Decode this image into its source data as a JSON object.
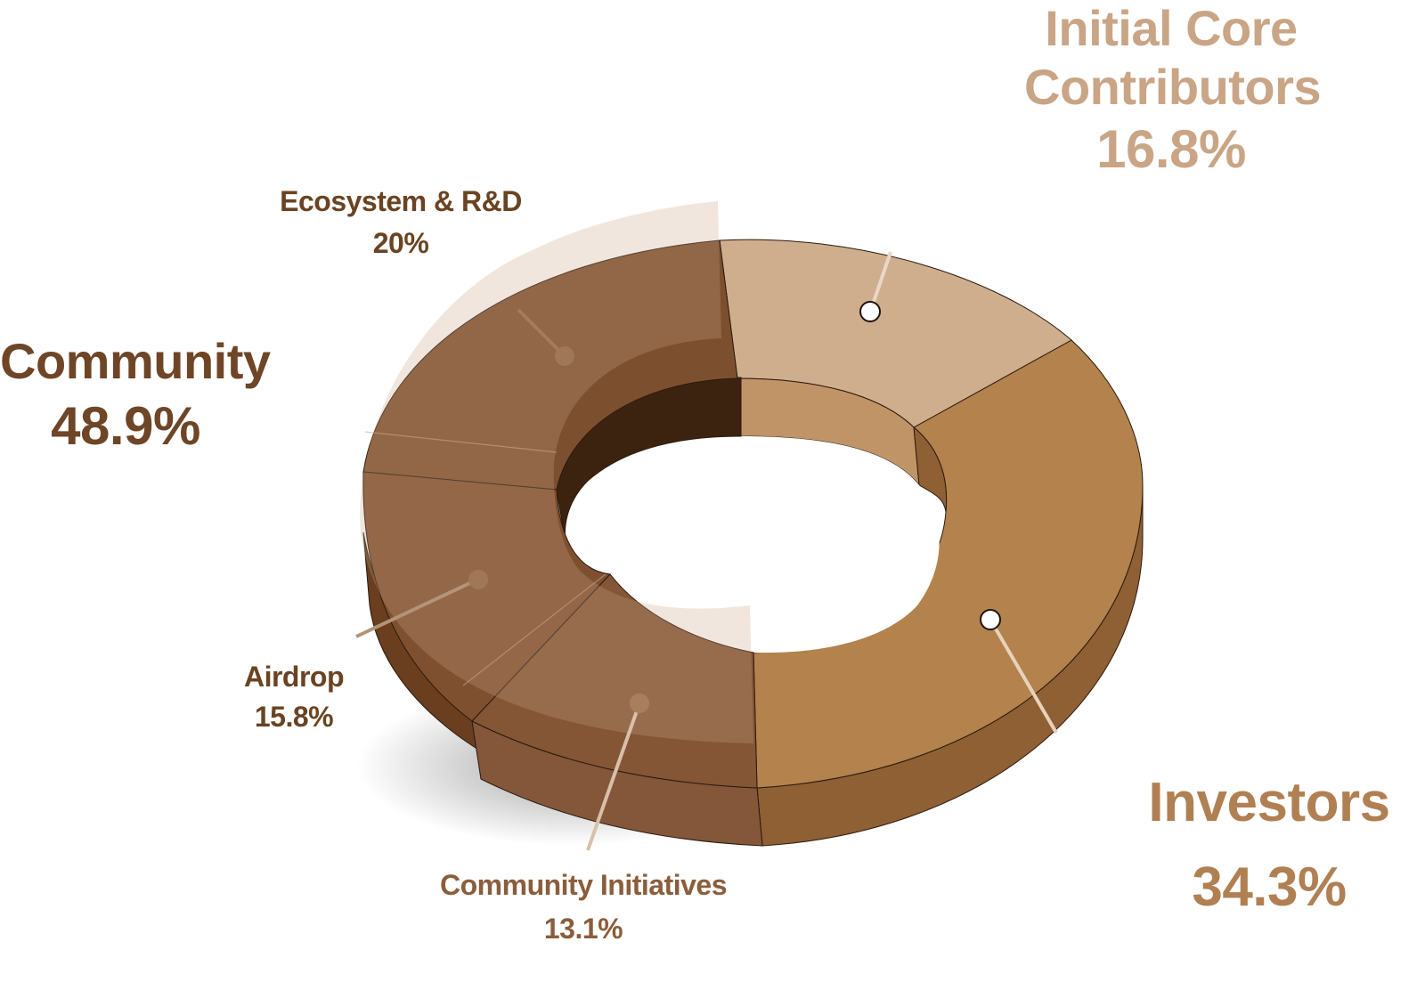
{
  "chart_data": {
    "type": "pie",
    "style": "3d donut with exploded community group",
    "groups": [
      {
        "name": "Community",
        "value_label": "48.9%",
        "value": 48.9,
        "color": "#7d4f2e",
        "components": [
          {
            "name": "Ecosystem & R&D",
            "value_label": "20%",
            "value": 20
          },
          {
            "name": "Airdrop",
            "value_label": "15.8%",
            "value": 15.8
          },
          {
            "name": "Community Initiatives",
            "value_label": "13.1%",
            "value": 13.1
          }
        ]
      },
      {
        "name": "Initial Core Contributors",
        "value_label": "16.8%",
        "value": 16.8,
        "color": "#cfae8e"
      },
      {
        "name": "Investors",
        "value_label": "34.3%",
        "value": 34.3,
        "color": "#b3824d"
      }
    ]
  },
  "labels": {
    "icc_line1": "Initial Core",
    "icc_line2": "Contributors",
    "icc_pct": "16.8%",
    "community_name": "Community",
    "community_pct": "48.9%",
    "eco_name": "Ecosystem & R&D",
    "eco_pct": "20%",
    "airdrop_name": "Airdrop",
    "airdrop_pct": "15.8%",
    "ci_name": "Community Initiatives",
    "ci_pct": "13.1%",
    "investors_name": "Investors",
    "investors_pct": "34.3%"
  },
  "colors": {
    "icc": "#c9a586",
    "community": "#6e4526",
    "eco_label": "#6a4322",
    "investors": "#b08053",
    "ci_label": "#8a5d3b"
  }
}
